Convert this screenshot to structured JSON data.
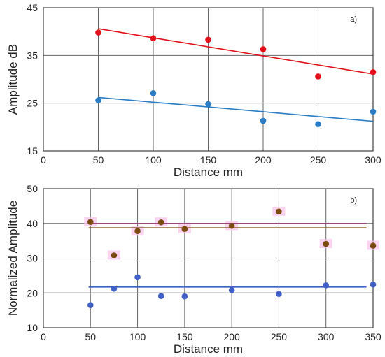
{
  "chart_data": [
    {
      "type": "scatter",
      "panel_label": "a)",
      "xlabel": "Distance  mm",
      "ylabel": "Amplitude  dB",
      "xlim": [
        0,
        300
      ],
      "ylim": [
        15,
        45
      ],
      "xticks": [
        0,
        50,
        100,
        150,
        200,
        250,
        300
      ],
      "yticks": [
        15,
        25,
        35,
        45
      ],
      "grid": true,
      "series": [
        {
          "color": "#e3101a",
          "points": [
            [
              50,
              39.8
            ],
            [
              100,
              38.6
            ],
            [
              150,
              38.3
            ],
            [
              200,
              36.3
            ],
            [
              250,
              30.6
            ],
            [
              300,
              31.5
            ]
          ],
          "trendline": [
            [
              50,
              40.6
            ],
            [
              300,
              31.1
            ]
          ]
        },
        {
          "color": "#2a7cc7",
          "points": [
            [
              50,
              25.6
            ],
            [
              100,
              27.1
            ],
            [
              150,
              24.8
            ],
            [
              200,
              21.3
            ],
            [
              250,
              20.6
            ],
            [
              300,
              23.2
            ]
          ],
          "trendline": [
            [
              50,
              26.2
            ],
            [
              300,
              21.2
            ]
          ]
        }
      ]
    },
    {
      "type": "scatter",
      "panel_label": "b)",
      "xlabel": "Distance  mm",
      "ylabel": "Normalized Amplitude",
      "xlim": [
        0,
        350
      ],
      "ylim": [
        10,
        50
      ],
      "xticks": [
        0,
        50,
        100,
        150,
        200,
        250,
        300,
        350
      ],
      "yticks": [
        10,
        20,
        30,
        40,
        50
      ],
      "grid": true,
      "series": [
        {
          "color": "#7a4a0f",
          "points": [
            [
              50,
              40.4
            ],
            [
              75,
              30.8
            ],
            [
              100,
              37.8
            ],
            [
              125,
              40.3
            ],
            [
              150,
              38.4
            ],
            [
              200,
              39.3
            ],
            [
              250,
              43.4
            ],
            [
              300,
              34.1
            ],
            [
              350,
              33.6
            ]
          ],
          "trendline": [
            [
              48,
              38.7
            ],
            [
              343,
              38.7
            ]
          ]
        },
        {
          "color": "#4060c8",
          "points": [
            [
              50,
              16.5
            ],
            [
              75,
              21.2
            ],
            [
              100,
              24.5
            ],
            [
              125,
              19.1
            ],
            [
              150,
              19.0
            ],
            [
              200,
              20.8
            ],
            [
              250,
              19.7
            ],
            [
              300,
              22.2
            ],
            [
              350,
              22.4
            ]
          ],
          "trendline": [
            [
              48,
              21.7
            ],
            [
              343,
              21.7
            ]
          ]
        }
      ],
      "reference_line": {
        "color": "#9a4a7a",
        "y": 40
      },
      "highlight_color": "#f7c8ec"
    }
  ]
}
